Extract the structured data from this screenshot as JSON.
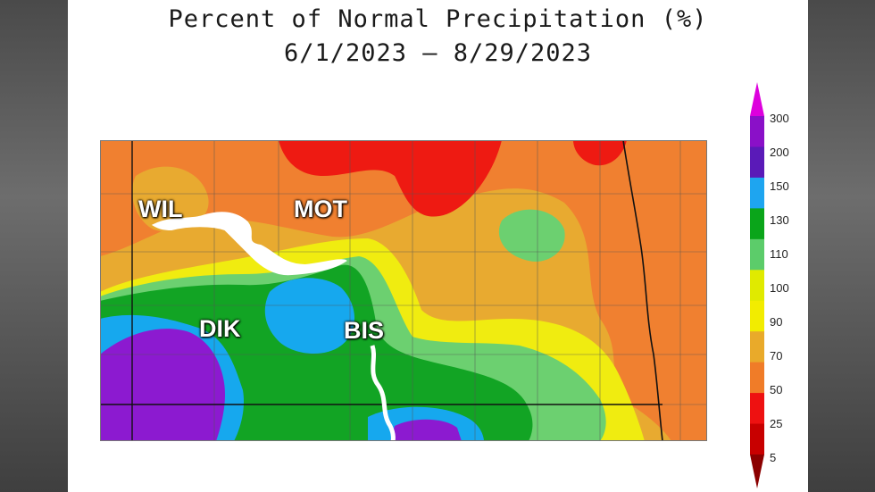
{
  "title": "Percent of Normal Precipitation (%)",
  "date_range": "6/1/2023 – 8/29/2023",
  "cities": [
    {
      "code": "WIL"
    },
    {
      "code": "MOT"
    },
    {
      "code": "DIK"
    },
    {
      "code": "BIS"
    }
  ],
  "legend": {
    "ticks": [
      "300",
      "200",
      "150",
      "130",
      "110",
      "100",
      "90",
      "70",
      "50",
      "25",
      "5"
    ],
    "colors": [
      "#dd00dd",
      "#8a10c8",
      "#5a1ab8",
      "#1ea5f0",
      "#0aa51a",
      "#5ccc6a",
      "#e0ea00",
      "#f2ec00",
      "#e9aa2a",
      "#f07c28",
      "#ee1111",
      "#c80000",
      "#8b0000"
    ]
  },
  "colors": {
    "lt50": "#ee1a12",
    "50_70": "#f08030",
    "70_90": "#e8aa30",
    "90_100": "#f0ec10",
    "100_110": "#dcea10",
    "110_130": "#6cd070",
    "130_150": "#12a424",
    "150_200": "#16a8ee",
    "200_300": "#8c1ad0"
  }
}
